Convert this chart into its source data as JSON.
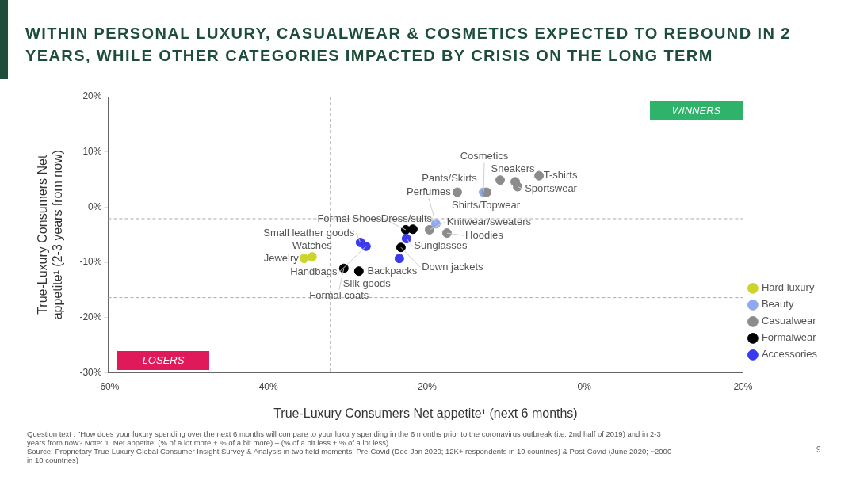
{
  "chart_data": {
    "type": "scatter",
    "title": "WITHIN PERSONAL LUXURY, CASUALWEAR & COSMETICS EXPECTED TO REBOUND IN 2 YEARS, WHILE OTHER CATEGORIES IMPACTED BY CRISIS ON THE LONG TERM",
    "xlabel": "True-Luxury Consumers Net appetite¹ (next 6 months)",
    "ylabel": "True-Luxury Consumers Net appetite¹ (2-3 years from now)",
    "xlim": [
      -60,
      20
    ],
    "ylim": [
      -30,
      20
    ],
    "xticks": [
      {
        "value": -60,
        "label": "-60%"
      },
      {
        "value": -40,
        "label": "-40%"
      },
      {
        "value": -20,
        "label": "-20%"
      },
      {
        "value": 0,
        "label": "0%"
      },
      {
        "value": 20,
        "label": "20%"
      }
    ],
    "yticks": [
      {
        "value": -30,
        "label": "-30%"
      },
      {
        "value": -20,
        "label": "-20%"
      },
      {
        "value": -10,
        "label": "-10%"
      },
      {
        "value": 0,
        "label": "0%"
      },
      {
        "value": 10,
        "label": "10%"
      },
      {
        "value": 20,
        "label": "20%"
      }
    ],
    "grid": false,
    "legend": "bottom right",
    "marker": "circle",
    "series": [
      {
        "name": "Hard luxury",
        "color": "#cdd52b",
        "x": [
          -35.3,
          -34.3
        ],
        "values": [
          -9.3,
          -9.0
        ]
      },
      {
        "name": "Beauty",
        "color": "#8fa9ef",
        "x": [
          -12.7,
          -18.7
        ],
        "values": [
          2.7,
          -3.0
        ]
      },
      {
        "name": "Casualwear",
        "color": "#8c8c8c",
        "x": [
          -16.0,
          -12.3,
          -10.6,
          -8.4,
          -5.7,
          -19.5,
          -17.3,
          -8.7
        ],
        "values": [
          2.7,
          2.7,
          4.9,
          3.7,
          5.7,
          -4.1,
          -4.7,
          4.6
        ]
      },
      {
        "name": "Formalwear",
        "color": "#000000",
        "x": [
          -22.5,
          -21.6,
          -23.1,
          -30.3,
          -28.4
        ],
        "values": [
          -4.1,
          -4.0,
          -7.3,
          -11.1,
          -11.6
        ]
      },
      {
        "name": "Accessories",
        "color": "#3a3af0",
        "x": [
          -28.2,
          -27.5,
          -22.4,
          -23.3
        ],
        "values": [
          -6.4,
          -7.1,
          -5.7,
          -9.3
        ]
      }
    ],
    "ref_lines": [
      {
        "axis": "x",
        "value": -32,
        "color": "#aaaaaa",
        "line_style": "dashed"
      },
      {
        "axis": "y",
        "value": -2.1,
        "color": "#aaaaaa",
        "line_style": "dashed"
      },
      {
        "axis": "y",
        "value": -16.4,
        "color": "#aaaaaa",
        "line_style": "dashed"
      }
    ],
    "annotations": [
      "WINNERS",
      "LOSERS",
      "Question text : \"How does your luxury spending over the next 6 months will compare to your luxury spending in the 6 months prior to the coronavirus outbreak (i.e. 2nd half of 2019) and in 2-3 years from now? Note: 1. Net appetite: (% of a lot more + % of a bit more) – (% of a bit less + % of a lot less)",
      "Source: Proprietary True-Luxury Global Consumer Insight Survey & Analysis in two field moments: Pre-Covid (Dec-Jan 2020; 12K+ respondents in 10 countries) & Post-Covid (June 2020; ~2000 in 10 countries)",
      "9",
      {
        "text": "Jewelry",
        "x": -35.3,
        "y": -9.3
      },
      {
        "text": "Watches",
        "x": -34.3,
        "y": -9.0
      },
      {
        "text": "Cosmetics",
        "x": -12.7,
        "y": 2.7
      },
      {
        "text": "Perfumes",
        "x": -18.7,
        "y": -3.0
      },
      {
        "text": "Pants/Skirts",
        "x": -16.0,
        "y": 2.7
      },
      {
        "text": "Shirts/Topwear",
        "x": -12.3,
        "y": 2.7
      },
      {
        "text": "Sneakers",
        "x": -10.6,
        "y": 4.9
      },
      {
        "text": "Sportswear",
        "x": -8.4,
        "y": 3.7
      },
      {
        "text": "T-shirts",
        "x": -5.7,
        "y": 5.7
      },
      {
        "text": "Knitwear/sweaters",
        "x": -19.5,
        "y": -4.1
      },
      {
        "text": "Hoodies",
        "x": -17.3,
        "y": -4.7
      },
      {
        "text": "Formal Shoes",
        "x": -22.5,
        "y": -4.1
      },
      {
        "text": "Dress/suits",
        "x": -21.6,
        "y": -4.0
      },
      {
        "text": "Down jackets",
        "x": -23.1,
        "y": -7.3
      },
      {
        "text": "Formal coats",
        "x": -30.3,
        "y": -11.1
      },
      {
        "text": "Silk goods",
        "x": -28.4,
        "y": -11.6
      },
      {
        "text": "Small leather goods",
        "x": -28.2,
        "y": -6.4
      },
      {
        "text": "Handbags",
        "x": -27.5,
        "y": -7.1
      },
      {
        "text": "Sunglasses",
        "x": -22.4,
        "y": -5.7
      },
      {
        "text": "Backpacks",
        "x": -23.3,
        "y": -9.3
      }
    ]
  }
}
